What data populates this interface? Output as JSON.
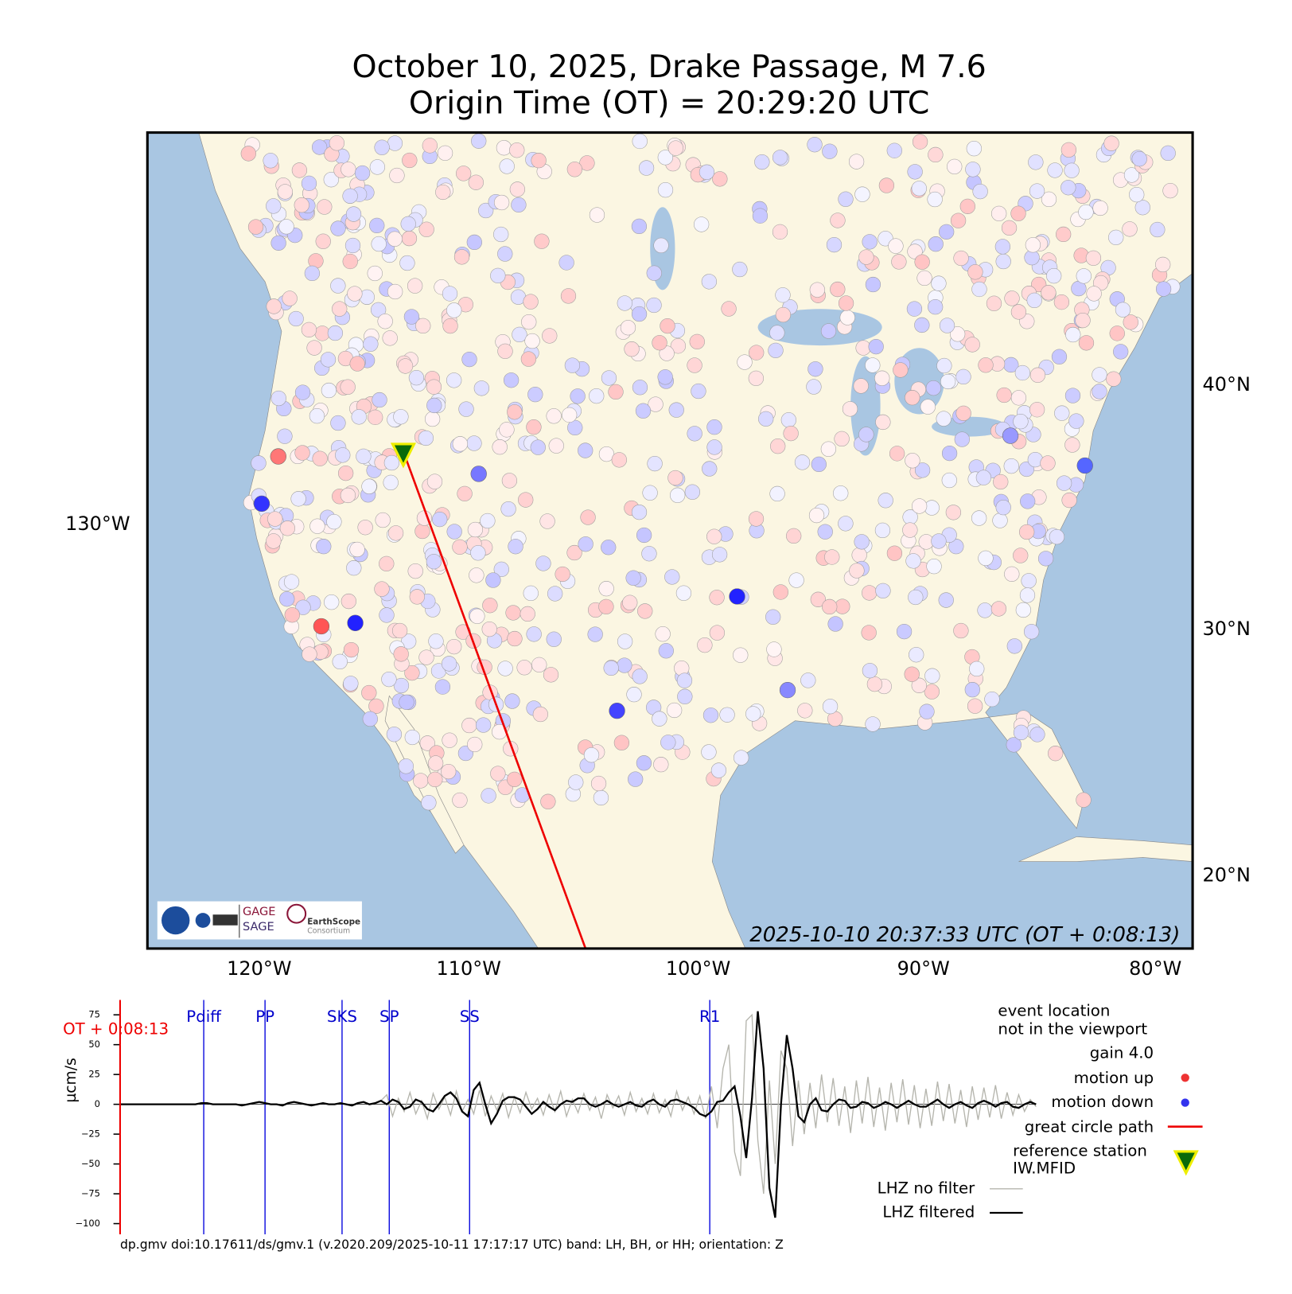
{
  "title": [
    "October 10, 2025, Drake Passage, M 7.6",
    "Origin Time (OT) = 20:29:20 UTC"
  ],
  "map": {
    "lon_labels": [
      "120°W",
      "110°W",
      "100°W",
      "90°W",
      "80°W"
    ],
    "lat_labels": [
      "40°N",
      "30°N",
      "20°N"
    ],
    "left_label": "130°W",
    "timestamp": "2025-10-10 20:37:33 UTC (OT + 0:08:13)",
    "logos": [
      "GAGE",
      "SAGE",
      "EarthScope",
      "Consortium"
    ]
  },
  "chart_data": {
    "type": "line",
    "ylabel": "µcm/s",
    "ylim": [
      -109,
      87.5
    ],
    "yticks": [
      75,
      50,
      25,
      0,
      {
        "value": -25,
        "label": "−25"
      },
      {
        "value": -50,
        "label": "−50"
      },
      {
        "value": -75,
        "label": "−75"
      },
      {
        "value": -100,
        "label": "−100"
      }
    ],
    "marker_label": "OT + 0:08:13",
    "phases": [
      "Pdiff",
      "PP",
      "SKS",
      "SP",
      "SS",
      "R1"
    ],
    "legend_notes": [
      "event location",
      "not in the viewport",
      "gain  4.0",
      "motion up",
      "motion down",
      "great circle path",
      "reference station",
      "IW.MFID"
    ],
    "series": [
      {
        "name": "LHZ no filter",
        "color": "#b5b5ad",
        "values": [
          0,
          0,
          0,
          0,
          0,
          0,
          0,
          0,
          0,
          0,
          0,
          0,
          0,
          0,
          1,
          1,
          0,
          0,
          0,
          0,
          0,
          -1,
          0,
          1,
          2,
          1,
          0,
          0,
          -1,
          1,
          2,
          1,
          0,
          -1,
          0,
          1,
          0,
          0,
          1,
          0,
          -1,
          1,
          2,
          0,
          1,
          3,
          8,
          -10,
          5,
          -6,
          10,
          -8,
          3,
          -12,
          9,
          -4,
          6,
          -9,
          11,
          -6,
          4,
          -8,
          12,
          -10,
          7,
          -5,
          9,
          -11,
          6,
          -7,
          10,
          -4,
          5,
          -9,
          8,
          -6,
          11,
          -10,
          4,
          -7,
          9,
          -5,
          6,
          -12,
          8,
          -3,
          7,
          -9,
          10,
          -6,
          5,
          -8,
          9,
          -7,
          4,
          -10,
          11,
          -5,
          6,
          -8,
          7,
          -12,
          15,
          -20,
          30,
          50,
          -40,
          -60,
          70,
          75,
          -30,
          -75,
          20,
          -50,
          45,
          30,
          -35,
          20,
          -25,
          18,
          -20,
          25,
          -15,
          22,
          -18,
          15,
          -24,
          20,
          -16,
          23,
          -19,
          14,
          -22,
          18,
          -15,
          21,
          -17,
          16,
          -20,
          13,
          -18,
          19,
          -14,
          17,
          -16,
          12,
          -19,
          15,
          -13,
          14,
          -11,
          16,
          -12,
          10,
          -9,
          8,
          -6,
          4,
          -2
        ]
      },
      {
        "name": "LHZ filtered",
        "color": "#000000",
        "values": [
          0,
          0,
          0,
          0,
          0,
          0,
          0,
          0,
          0,
          0,
          0,
          0,
          0,
          0,
          1,
          1,
          0,
          0,
          0,
          0,
          0,
          -1,
          0,
          1,
          2,
          1,
          0,
          0,
          -1,
          1,
          2,
          1,
          0,
          -1,
          0,
          1,
          0,
          0,
          1,
          0,
          -1,
          1,
          2,
          0,
          1,
          3,
          0,
          4,
          2,
          -4,
          -2,
          4,
          2,
          -4,
          -6,
          0,
          7,
          10,
          5,
          -6,
          -10,
          12,
          18,
          0,
          -16,
          -8,
          3,
          6,
          6,
          4,
          -2,
          -8,
          -4,
          2,
          -2,
          -5,
          0,
          3,
          2,
          5,
          5,
          0,
          -2,
          0,
          3,
          0,
          -2,
          0,
          2,
          -1,
          -2,
          2,
          4,
          0,
          -2,
          3,
          4,
          2,
          0,
          -3,
          -8,
          -10,
          -6,
          2,
          3,
          10,
          15,
          -10,
          -45,
          5,
          78,
          30,
          -70,
          -95,
          0,
          58,
          30,
          -10,
          -15,
          0,
          5,
          -5,
          -6,
          0,
          4,
          3,
          -3,
          -2,
          2,
          1,
          -3,
          -1,
          2,
          0,
          -3,
          0,
          3,
          0,
          -2,
          -2,
          1,
          4,
          0,
          -3,
          0,
          2,
          -1,
          -3,
          1,
          3,
          1,
          -2,
          1,
          2,
          -2,
          -3,
          0,
          2,
          0
        ]
      }
    ]
  },
  "footer": "dp.gmv doi:10.17611/ds/gmv.1 (v.2020.209/2025-10-11 17:17:17 UTC) band: LH, BH, or HH; orientation: Z"
}
